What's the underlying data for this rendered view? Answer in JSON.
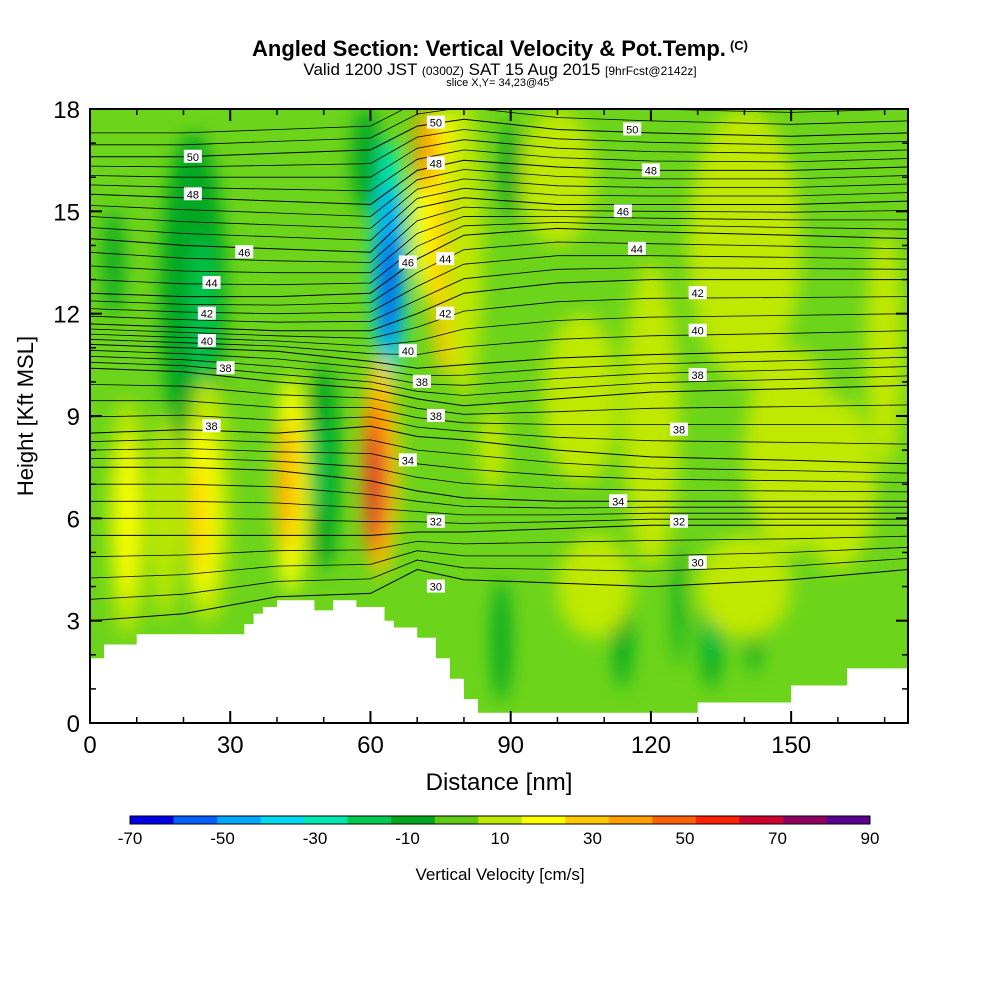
{
  "header": {
    "title": "Angled Section: Vertical Velocity & Pot.Temp.",
    "title_suffix": "(C)",
    "valid_prefix": "Valid 1200 JST",
    "valid_utc": "(0300Z)",
    "valid_date": "SAT 15 Aug 2015",
    "forecast": "[9hrFcst@2142z]",
    "slice": "slice X,Y= 34,23@45°"
  },
  "chart_data": {
    "type": "heatmap",
    "xlabel": "Distance [nm]",
    "ylabel": "Height [Kft MSL]",
    "xlim": [
      0,
      175
    ],
    "ylim": [
      0,
      18
    ],
    "x_ticks": [
      0,
      30,
      60,
      90,
      120,
      150
    ],
    "y_ticks": [
      0,
      3,
      6,
      9,
      12,
      15,
      18
    ],
    "colorbar": {
      "label": "Vertical Velocity [cm/s]",
      "tick_labels": [
        -70,
        -50,
        -30,
        -10,
        10,
        30,
        50,
        70,
        90
      ],
      "levels": [
        -70,
        -60,
        -50,
        -40,
        -30,
        -20,
        -10,
        0,
        10,
        20,
        30,
        40,
        50,
        60,
        70,
        80,
        90
      ],
      "colors": [
        "#0000e8",
        "#0060ff",
        "#00a8ff",
        "#00d8f0",
        "#00e8b0",
        "#00c850",
        "#00a820",
        "#60cc10",
        "#c0e800",
        "#ffff00",
        "#ffc800",
        "#ffa000",
        "#ff6000",
        "#ff2000",
        "#d00030",
        "#900060",
        "#5a0090"
      ]
    },
    "background_color": "#6cd41a",
    "terrain": {
      "x": [
        0,
        3,
        3,
        10,
        10,
        18,
        18,
        33,
        33,
        35,
        35,
        37,
        37,
        40,
        40,
        43,
        43,
        48,
        48,
        52,
        52,
        57,
        57,
        60,
        60,
        63,
        63,
        65,
        65,
        70,
        70,
        74,
        74,
        77,
        77,
        80,
        80,
        83,
        83,
        90,
        90,
        130,
        130,
        150,
        150,
        162,
        162,
        175
      ],
      "h": [
        1.9,
        1.9,
        2.3,
        2.3,
        2.6,
        2.6,
        2.6,
        2.6,
        2.9,
        2.9,
        3.2,
        3.2,
        3.4,
        3.4,
        3.6,
        3.6,
        3.6,
        3.6,
        3.3,
        3.3,
        3.6,
        3.6,
        3.4,
        3.4,
        3.4,
        3.4,
        3.0,
        3.0,
        2.8,
        2.8,
        2.5,
        2.5,
        1.9,
        1.9,
        1.3,
        1.3,
        0.7,
        0.7,
        0.3,
        0.3,
        0.3,
        0.3,
        0.6,
        0.6,
        1.1,
        1.1,
        1.6,
        1.6
      ]
    },
    "velocity_features": [
      {
        "x": 22,
        "y": 12.5,
        "rx": 7,
        "ry": 4.8,
        "v": -10
      },
      {
        "x": 24,
        "y": 11.8,
        "rx": 2.5,
        "ry": 2.5,
        "v": -20
      },
      {
        "x": 5,
        "y": 13.5,
        "rx": 2,
        "ry": 1.6,
        "v": -10
      },
      {
        "x": 64,
        "y": 13.5,
        "rx": 4,
        "ry": 3.6,
        "v": -30
      },
      {
        "x": 64,
        "y": 13.2,
        "rx": 3,
        "ry": 2.6,
        "v": -50
      },
      {
        "x": 64,
        "y": 12.8,
        "rx": 1.5,
        "ry": 1.6,
        "v": -70
      },
      {
        "x": 59,
        "y": 16.5,
        "rx": 3,
        "ry": 1.6,
        "v": -10
      },
      {
        "x": 75,
        "y": 15.0,
        "rx": 6,
        "ry": 3.0,
        "v": 20
      },
      {
        "x": 76,
        "y": 13.0,
        "rx": 3,
        "ry": 2.8,
        "v": 30
      },
      {
        "x": 72,
        "y": 16.8,
        "rx": 2.5,
        "ry": 1.2,
        "v": 40
      },
      {
        "x": 80,
        "y": 14.0,
        "rx": 4,
        "ry": 4.5,
        "v": 10
      },
      {
        "x": 62,
        "y": 7.5,
        "rx": 4,
        "ry": 3.2,
        "v": 30
      },
      {
        "x": 61,
        "y": 7.2,
        "rx": 2.5,
        "ry": 2.4,
        "v": 50
      },
      {
        "x": 61,
        "y": 7.0,
        "rx": 1.5,
        "ry": 1.6,
        "v": 70
      },
      {
        "x": 43,
        "y": 7.0,
        "rx": 3.5,
        "ry": 3.2,
        "v": 20
      },
      {
        "x": 42,
        "y": 7.0,
        "rx": 1.8,
        "ry": 2.0,
        "v": 40
      },
      {
        "x": 50,
        "y": 7.5,
        "rx": 3.5,
        "ry": 3.0,
        "v": -10
      },
      {
        "x": 49,
        "y": 7.5,
        "rx": 1.5,
        "ry": 1.5,
        "v": -20
      },
      {
        "x": 25,
        "y": 6.5,
        "rx": 5,
        "ry": 3.6,
        "v": 10
      },
      {
        "x": 24,
        "y": 6.3,
        "rx": 3,
        "ry": 2.6,
        "v": 20
      },
      {
        "x": 23,
        "y": 6.0,
        "rx": 1.5,
        "ry": 1.6,
        "v": 30
      },
      {
        "x": 8,
        "y": 6.0,
        "rx": 4,
        "ry": 3.5,
        "v": 10
      },
      {
        "x": 8,
        "y": 6.0,
        "rx": 2.2,
        "ry": 2.4,
        "v": 20
      },
      {
        "x": 16,
        "y": 6.0,
        "rx": 3,
        "ry": 3.0,
        "v": 10
      },
      {
        "x": 86,
        "y": 8.0,
        "rx": 3,
        "ry": 1.2,
        "v": 10
      },
      {
        "x": 88,
        "y": 2.4,
        "rx": 2,
        "ry": 1.8,
        "v": -10
      },
      {
        "x": 114,
        "y": 2.6,
        "rx": 2,
        "ry": 1.6,
        "v": -10
      },
      {
        "x": 133,
        "y": 3.0,
        "rx": 2.5,
        "ry": 2.0,
        "v": -10
      },
      {
        "x": 133,
        "y": 3.0,
        "rx": 1.2,
        "ry": 1.2,
        "v": -20
      },
      {
        "x": 142,
        "y": 2.8,
        "rx": 1.5,
        "ry": 1.4,
        "v": -10
      },
      {
        "x": 126,
        "y": 3.5,
        "rx": 1.2,
        "ry": 1.8,
        "v": -10
      },
      {
        "x": 90,
        "y": 16.2,
        "rx": 2.2,
        "ry": 1.4,
        "v": -10
      },
      {
        "x": 120,
        "y": 9.0,
        "rx": 6,
        "ry": 4.5,
        "v": 10
      },
      {
        "x": 105,
        "y": 9.5,
        "rx": 8,
        "ry": 2.5,
        "v": 10
      },
      {
        "x": 140,
        "y": 14.0,
        "rx": 12,
        "ry": 4.0,
        "v": 10
      },
      {
        "x": 100,
        "y": 16.0,
        "rx": 8,
        "ry": 2.0,
        "v": 10
      },
      {
        "x": 170,
        "y": 11.0,
        "rx": 4,
        "ry": 3.5,
        "v": 10
      },
      {
        "x": 160,
        "y": 7.0,
        "rx": 8,
        "ry": 2.5,
        "v": 10
      },
      {
        "x": 140,
        "y": 4.0,
        "rx": 10,
        "ry": 1.5,
        "v": 10
      },
      {
        "x": 108,
        "y": 4.0,
        "rx": 8,
        "ry": 1.5,
        "v": 10
      },
      {
        "x": 150,
        "y": 8.0,
        "rx": 10,
        "ry": 3.0,
        "v": 10
      }
    ],
    "theta_contours": [
      {
        "value": 30,
        "y": [
          3.0,
          3.2,
          3.7,
          3.8,
          4.5,
          4.2,
          4.1,
          4.0,
          4.2,
          4.5
        ]
      },
      {
        "value": 32,
        "y": [
          5.5,
          5.5,
          5.5,
          5.5,
          5.6,
          5.6,
          5.7,
          5.8,
          5.8,
          5.8
        ]
      },
      {
        "value": 34,
        "y": [
          7.5,
          7.5,
          7.4,
          7.1,
          6.8,
          6.6,
          6.5,
          6.5,
          6.5,
          6.5
        ]
      },
      {
        "value": 36,
        "y": [
          8.5,
          8.6,
          8.5,
          8.7,
          8.4,
          8.3,
          8.0,
          7.8,
          7.7,
          7.6
        ]
      },
      {
        "value": 38,
        "y": [
          10.4,
          10.3,
          10.0,
          9.8,
          9.5,
          9.3,
          9.5,
          9.7,
          9.8,
          9.9
        ]
      },
      {
        "value": 40,
        "y": [
          11.1,
          11.0,
          10.9,
          10.6,
          10.4,
          10.5,
          10.7,
          10.8,
          10.9,
          11.0
        ]
      },
      {
        "value": 42,
        "y": [
          11.7,
          11.6,
          11.5,
          11.5,
          12.0,
          12.6,
          12.9,
          13.0,
          13.0,
          13.0
        ]
      },
      {
        "value": 44,
        "y": [
          12.6,
          12.5,
          12.5,
          12.6,
          13.6,
          14.3,
          14.5,
          14.4,
          14.3,
          14.2
        ]
      },
      {
        "value": 46,
        "y": [
          14.2,
          14.0,
          13.9,
          13.8,
          15.1,
          15.4,
          15.2,
          15.2,
          15.2,
          15.3
        ]
      },
      {
        "value": 48,
        "y": [
          15.5,
          15.4,
          15.3,
          15.2,
          16.2,
          16.5,
          16.3,
          16.2,
          16.2,
          16.3
        ]
      },
      {
        "value": 50,
        "y": [
          16.6,
          16.6,
          16.7,
          16.8,
          17.5,
          17.7,
          17.4,
          17.3,
          17.2,
          17.3
        ]
      }
    ],
    "theta_contour_x": [
      0,
      20,
      40,
      60,
      70,
      80,
      100,
      120,
      150,
      175
    ],
    "contour_labels": [
      {
        "text": "50",
        "x": 22,
        "y": 16.6
      },
      {
        "text": "48",
        "x": 22,
        "y": 15.5
      },
      {
        "text": "46",
        "x": 33,
        "y": 13.8
      },
      {
        "text": "44",
        "x": 26,
        "y": 12.9
      },
      {
        "text": "42",
        "x": 25,
        "y": 12.0
      },
      {
        "text": "40",
        "x": 25,
        "y": 11.2
      },
      {
        "text": "38",
        "x": 29,
        "y": 10.4
      },
      {
        "text": "38",
        "x": 26,
        "y": 8.7
      },
      {
        "text": "50",
        "x": 74,
        "y": 17.6
      },
      {
        "text": "48",
        "x": 74,
        "y": 16.4
      },
      {
        "text": "46",
        "x": 68,
        "y": 13.5
      },
      {
        "text": "44",
        "x": 76,
        "y": 13.6
      },
      {
        "text": "42",
        "x": 76,
        "y": 12.0
      },
      {
        "text": "40",
        "x": 68,
        "y": 10.9
      },
      {
        "text": "38",
        "x": 71,
        "y": 10.0
      },
      {
        "text": "38",
        "x": 74,
        "y": 9.0
      },
      {
        "text": "34",
        "x": 68,
        "y": 7.7
      },
      {
        "text": "32",
        "x": 74,
        "y": 5.9
      },
      {
        "text": "30",
        "x": 74,
        "y": 4.0
      },
      {
        "text": "50",
        "x": 116,
        "y": 17.4
      },
      {
        "text": "48",
        "x": 120,
        "y": 16.2
      },
      {
        "text": "46",
        "x": 114,
        "y": 15.0
      },
      {
        "text": "44",
        "x": 117,
        "y": 13.9
      },
      {
        "text": "42",
        "x": 130,
        "y": 12.6
      },
      {
        "text": "40",
        "x": 130,
        "y": 11.5
      },
      {
        "text": "38",
        "x": 130,
        "y": 10.2
      },
      {
        "text": "38",
        "x": 126,
        "y": 8.6
      },
      {
        "text": "34",
        "x": 113,
        "y": 6.5
      },
      {
        "text": "32",
        "x": 126,
        "y": 5.9
      },
      {
        "text": "30",
        "x": 130,
        "y": 4.7
      }
    ]
  }
}
